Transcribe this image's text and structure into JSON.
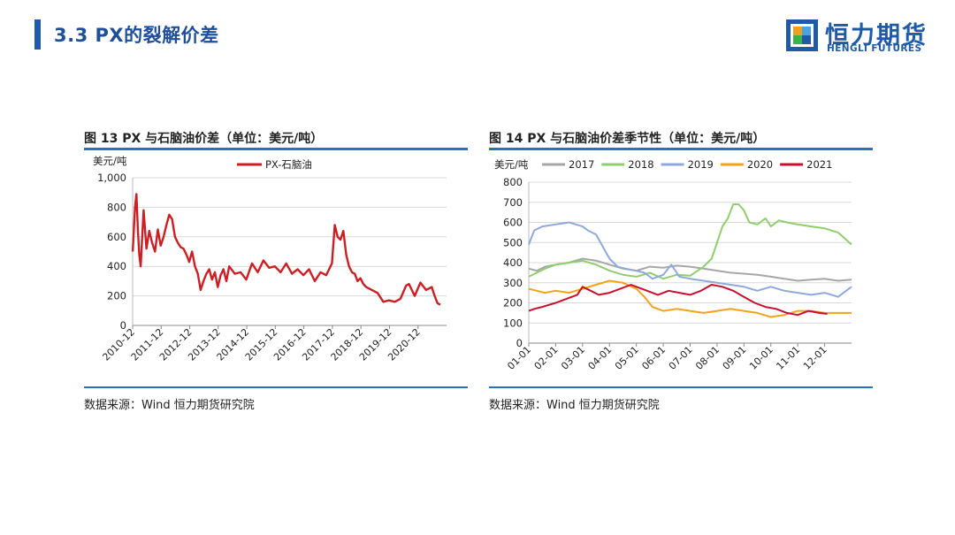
{
  "page": {
    "title": "3.3 PX的裂解价差",
    "logo_cn": "恒力期货",
    "logo_en": "HENGLI FUTURES",
    "colors": {
      "brand_blue": "#1f5ba8",
      "rule_blue": "#2a6fc0"
    }
  },
  "figure_left": {
    "title": "图 13 PX 与石脑油价差（单位：美元/吨）",
    "source": "数据来源：Wind 恒力期货研究院"
  },
  "figure_right": {
    "title": "图 14 PX 与石脑油价差季节性（单位：美元/吨）",
    "source": "数据来源：Wind 恒力期货研究院"
  },
  "chart_data": [
    {
      "type": "line",
      "ylabel": "美元/吨",
      "ylim": [
        0,
        1000
      ],
      "yticks": [
        0,
        200,
        400,
        600,
        800,
        1000
      ],
      "ytick_labels": [
        "0",
        "200",
        "400",
        "600",
        "800",
        "1,000"
      ],
      "xticks": [
        "2010-12",
        "2011-12",
        "2012-12",
        "2013-12",
        "2014-12",
        "2015-12",
        "2016-12",
        "2017-12",
        "2018-12",
        "2019-12",
        "2020-12"
      ],
      "xlim": [
        2010.917,
        2021.917
      ],
      "grid": true,
      "legend_position": "top-center",
      "series": [
        {
          "name": "PX-石脑油",
          "color": "#cc1f24",
          "x": [
            2010.92,
            2011.0,
            2011.05,
            2011.1,
            2011.15,
            2011.2,
            2011.3,
            2011.4,
            2011.5,
            2011.6,
            2011.7,
            2011.8,
            2011.9,
            2012.0,
            2012.1,
            2012.2,
            2012.3,
            2012.4,
            2012.5,
            2012.6,
            2012.7,
            2012.8,
            2012.9,
            2013.0,
            2013.1,
            2013.2,
            2013.3,
            2013.4,
            2013.5,
            2013.6,
            2013.7,
            2013.8,
            2013.9,
            2014.0,
            2014.1,
            2014.2,
            2014.3,
            2014.5,
            2014.7,
            2014.9,
            2015.1,
            2015.3,
            2015.5,
            2015.7,
            2015.9,
            2016.1,
            2016.3,
            2016.5,
            2016.7,
            2016.9,
            2017.1,
            2017.3,
            2017.5,
            2017.7,
            2017.9,
            2018.0,
            2018.1,
            2018.2,
            2018.3,
            2018.4,
            2018.5,
            2018.6,
            2018.7,
            2018.8,
            2018.9,
            2019.0,
            2019.1,
            2019.3,
            2019.5,
            2019.7,
            2019.9,
            2020.1,
            2020.3,
            2020.5,
            2020.6,
            2020.8,
            2021.0,
            2021.2,
            2021.4,
            2021.5,
            2021.6,
            2021.7
          ],
          "y": [
            500,
            800,
            890,
            650,
            480,
            400,
            780,
            520,
            640,
            560,
            500,
            650,
            540,
            600,
            680,
            750,
            720,
            600,
            560,
            530,
            520,
            480,
            430,
            500,
            400,
            350,
            240,
            300,
            350,
            380,
            310,
            360,
            260,
            340,
            380,
            300,
            400,
            350,
            360,
            310,
            420,
            360,
            440,
            390,
            400,
            360,
            420,
            350,
            380,
            340,
            380,
            300,
            360,
            340,
            420,
            680,
            600,
            580,
            640,
            480,
            400,
            360,
            350,
            300,
            320,
            280,
            260,
            240,
            220,
            160,
            170,
            160,
            180,
            270,
            280,
            200,
            290,
            240,
            260,
            200,
            150,
            140
          ]
        }
      ]
    },
    {
      "type": "line",
      "ylabel": "美元/吨",
      "ylim": [
        0,
        800
      ],
      "yticks": [
        0,
        100,
        200,
        300,
        400,
        500,
        600,
        700,
        800
      ],
      "xticks": [
        "01-01",
        "02-01",
        "03-01",
        "04-01",
        "05-01",
        "06-01",
        "07-01",
        "08-01",
        "09-01",
        "10-01",
        "11-01",
        "12-01"
      ],
      "xlim": [
        1,
        13
      ],
      "grid": true,
      "legend_position": "top",
      "series": [
        {
          "name": "2017",
          "color": "#a6a6a6",
          "x": [
            1.0,
            1.3,
            1.6,
            2.0,
            2.5,
            3.0,
            3.5,
            4.0,
            4.5,
            5.0,
            5.5,
            6.0,
            6.5,
            7.0,
            7.5,
            8.0,
            8.5,
            9.0,
            9.5,
            10.0,
            10.5,
            11.0,
            11.5,
            12.0,
            12.5,
            13.0
          ],
          "y": [
            370,
            360,
            380,
            390,
            400,
            420,
            410,
            390,
            370,
            360,
            380,
            375,
            385,
            380,
            370,
            360,
            350,
            345,
            340,
            330,
            320,
            310,
            315,
            320,
            310,
            315
          ]
        },
        {
          "name": "2018",
          "color": "#8fce6f",
          "x": [
            1.0,
            1.3,
            1.6,
            2.0,
            2.5,
            3.0,
            3.5,
            4.0,
            4.5,
            5.0,
            5.5,
            6.0,
            6.5,
            7.0,
            7.5,
            7.8,
            8.0,
            8.2,
            8.4,
            8.6,
            8.8,
            9.0,
            9.2,
            9.5,
            9.8,
            10.0,
            10.3,
            10.6,
            11.0,
            11.5,
            12.0,
            12.5,
            13.0
          ],
          "y": [
            330,
            350,
            370,
            390,
            400,
            410,
            390,
            360,
            340,
            330,
            350,
            320,
            340,
            335,
            380,
            420,
            500,
            580,
            620,
            690,
            690,
            660,
            600,
            590,
            620,
            580,
            610,
            600,
            590,
            580,
            570,
            550,
            490
          ]
        },
        {
          "name": "2019",
          "color": "#8eaadb",
          "x": [
            1.0,
            1.2,
            1.5,
            2.0,
            2.5,
            3.0,
            3.2,
            3.5,
            4.0,
            4.3,
            4.6,
            5.0,
            5.3,
            5.6,
            6.0,
            6.3,
            6.6,
            7.0,
            7.5,
            8.0,
            8.5,
            9.0,
            9.5,
            10.0,
            10.5,
            11.0,
            11.5,
            12.0,
            12.5,
            13.0
          ],
          "y": [
            490,
            560,
            580,
            590,
            600,
            580,
            560,
            540,
            420,
            380,
            370,
            360,
            350,
            320,
            340,
            390,
            330,
            320,
            310,
            300,
            290,
            280,
            260,
            280,
            260,
            250,
            240,
            250,
            230,
            280
          ]
        },
        {
          "name": "2020",
          "color": "#f4a21a",
          "x": [
            1.0,
            1.3,
            1.6,
            2.0,
            2.5,
            3.0,
            3.5,
            4.0,
            4.5,
            5.0,
            5.3,
            5.6,
            6.0,
            6.5,
            7.0,
            7.5,
            8.0,
            8.5,
            9.0,
            9.5,
            10.0,
            10.5,
            11.0,
            11.5,
            12.0,
            12.5,
            13.0
          ],
          "y": [
            270,
            260,
            250,
            260,
            250,
            270,
            290,
            310,
            300,
            270,
            230,
            180,
            160,
            170,
            160,
            150,
            160,
            170,
            160,
            150,
            130,
            140,
            160,
            160,
            150,
            150,
            150
          ]
        },
        {
          "name": "2021",
          "color": "#c8102e",
          "x": [
            1.0,
            1.2,
            1.5,
            2.0,
            2.4,
            2.8,
            3.0,
            3.3,
            3.6,
            4.0,
            4.4,
            4.8,
            5.0,
            5.4,
            5.8,
            6.2,
            6.6,
            7.0,
            7.4,
            7.8,
            8.2,
            8.6,
            9.0,
            9.4,
            9.8,
            10.2,
            10.6,
            11.0,
            11.4,
            11.8,
            12.1
          ],
          "y": [
            160,
            170,
            180,
            200,
            220,
            240,
            280,
            260,
            240,
            250,
            270,
            290,
            280,
            260,
            240,
            260,
            250,
            240,
            260,
            290,
            280,
            260,
            230,
            200,
            180,
            170,
            150,
            140,
            160,
            150,
            145
          ]
        }
      ]
    }
  ]
}
